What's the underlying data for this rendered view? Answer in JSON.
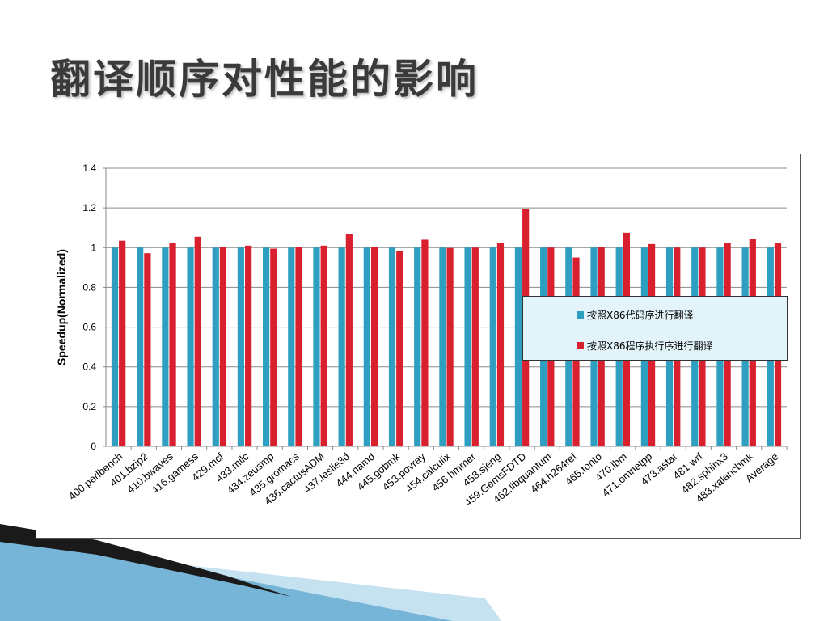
{
  "slide": {
    "title": "翻译顺序对性能的影响"
  },
  "colors": {
    "series1": "#2e9fc0",
    "series2": "#d8202e",
    "title": "#3a3a3a",
    "legend_bg": "#e2f3fa",
    "decor_dark": "#1a1a1a",
    "decor_blue": "#3e8fc2"
  },
  "chart_data": {
    "type": "bar",
    "ylabel": "Speedup(Normalized)",
    "ylim": [
      0,
      1.4
    ],
    "yticks": [
      "0",
      "0.2",
      "0.4",
      "0.6",
      "0.8",
      "1",
      "1.2",
      "1.4"
    ],
    "grid": true,
    "legend_position": "right",
    "categories": [
      "400.perlbench",
      "401.bzip2",
      "410.bwaves",
      "416.gamess",
      "429.mcf",
      "433.milc",
      "434.zeusmp",
      "435.gromacs",
      "436.cactusADM",
      "437.leslie3d",
      "444.namd",
      "445.gobmk",
      "453.povray",
      "454.calculix",
      "456.hmmer",
      "458.sjeng",
      "459.GemsFDTD",
      "462.libquantum",
      "464.h264ref",
      "465.tonto",
      "470.lbm",
      "471.omnetpp",
      "473.astar",
      "481.wrf",
      "482.sphinx3",
      "483.xalancbmk",
      "Average"
    ],
    "series": [
      {
        "name": "按照X86代码序进行翻译",
        "values": [
          1,
          1,
          1,
          1,
          1,
          1,
          1,
          1,
          1,
          1,
          1,
          1,
          1,
          1,
          1,
          1,
          1,
          1,
          1,
          1,
          1,
          1,
          1,
          1,
          1,
          1,
          1
        ]
      },
      {
        "name": "按照X86程序执行序进行翻译",
        "values": [
          1.035,
          0.972,
          1.022,
          1.055,
          1.005,
          1.01,
          0.995,
          1.005,
          1.01,
          1.07,
          1.002,
          0.982,
          1.04,
          0.998,
          1.0,
          1.025,
          1.195,
          1.0,
          0.95,
          1.005,
          1.075,
          1.018,
          1.0,
          1.0,
          1.025,
          1.045,
          1.022
        ]
      }
    ]
  }
}
